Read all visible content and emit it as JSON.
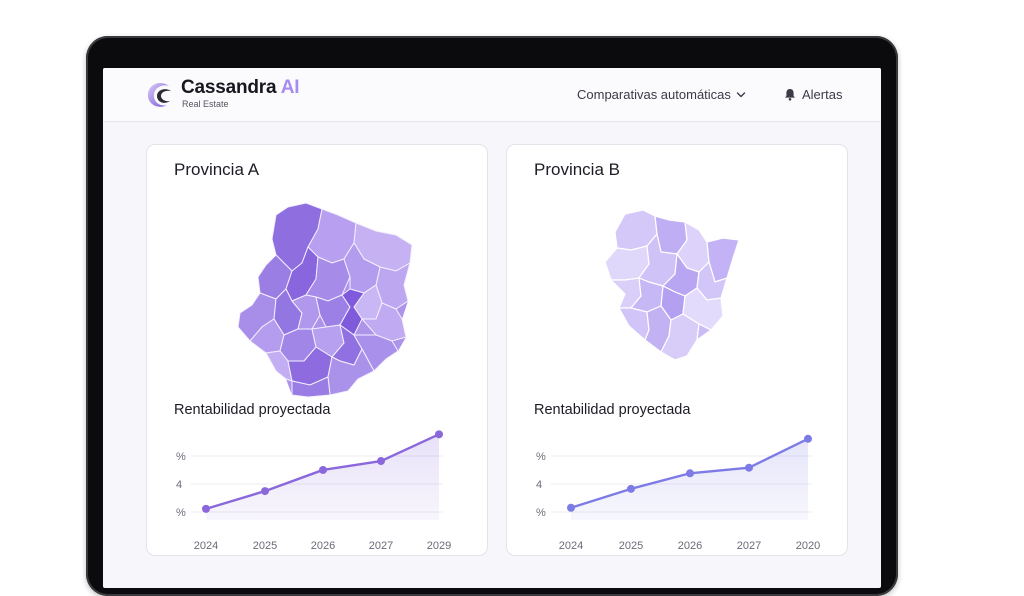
{
  "header": {
    "brand_name": "Cassandra",
    "brand_accent": "AI",
    "tagline": "Real Estate",
    "nav_compare_label": "Comparativas automáticas",
    "nav_alerts_label": "Alertas"
  },
  "cards": [
    {
      "title": "Provincia A",
      "chart_title": "Rentabilidad proyectada"
    },
    {
      "title": "Provincia B",
      "chart_title": "Rentabilidad proyectada"
    }
  ],
  "chart_data": [
    {
      "type": "line",
      "title": "Rentabilidad proyectada",
      "categories": [
        "2024",
        "2025",
        "2026",
        "2027",
        "2029"
      ],
      "values": [
        1.0,
        2.6,
        4.5,
        5.3,
        7.7
      ],
      "ytick_labels": [
        "%",
        "4",
        "%"
      ],
      "ylim": [
        0,
        8
      ],
      "xlabel": "",
      "ylabel": "",
      "color": "#8a68dc"
    },
    {
      "type": "line",
      "title": "Rentabilidad proyectada",
      "categories": [
        "2024",
        "2025",
        "2026",
        "2027",
        "2020"
      ],
      "values": [
        1.1,
        2.8,
        4.2,
        4.7,
        7.3
      ],
      "ytick_labels": [
        "%",
        "4",
        "%"
      ],
      "ylim": [
        0,
        8
      ],
      "xlabel": "",
      "ylabel": "",
      "color": "#7d7be6"
    }
  ],
  "colors": {
    "accent": "#a68bf0",
    "map_a_dark": "#8f6fe0",
    "map_b_light": "#d7cdf9"
  },
  "icons": {
    "logo": "cassandra-logo-icon",
    "chevron": "chevron-down-icon",
    "bell": "bell-icon"
  }
}
